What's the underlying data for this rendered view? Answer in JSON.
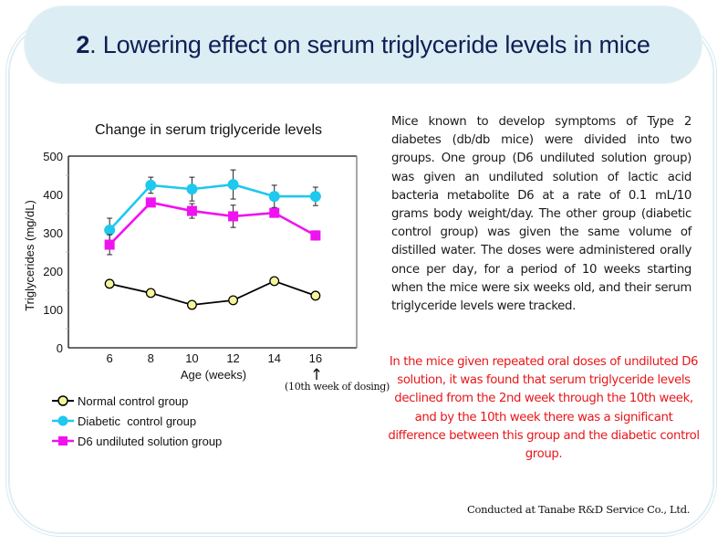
{
  "slide": {
    "title_number": "2",
    "title_text": ". Lowering effect on serum triglyceride levels in mice",
    "body_paragraph": "Mice known to develop symptoms of Type 2 diabetes (db/db mice) were divided into two groups. One group (D6 undiluted solution group) was given an undiluted solution of lactic acid bacteria metabolite D6 at a rate of 0.1 mL/10 grams body weight/day. The other group (diabetic control group) was given the same volume of distilled water. The doses were administered orally once per day, for a period of 10 weeks starting when the mice were six weeks old, and their serum triglyceride levels were tracked.",
    "conclusion": "In the mice given repeated oral doses of undiluted D6 solution, it was found that serum triglyceride levels declined from the 2nd week through the 10th week, and by the 10th week there was a significant difference between this group and the diabetic control group.",
    "credit": "Conducted at Tanabe R&D Service Co., Ltd.",
    "accent_color": "#0f1f55",
    "conclusion_color": "#e8171b",
    "frame_color": "#dcedf3"
  },
  "chart_data": {
    "type": "line",
    "title": "Change in serum triglyceride levels",
    "xlabel": "Age (weeks)",
    "ylabel": "Triglycerides (mg/dL)",
    "x": [
      6,
      8,
      10,
      12,
      14,
      16
    ],
    "xticks": [
      "6",
      "8",
      "10",
      "12",
      "14",
      "16"
    ],
    "yticks": [
      "0",
      "100",
      "200",
      "300",
      "400",
      "500"
    ],
    "xlim": [
      4,
      18
    ],
    "ylim": [
      0,
      500
    ],
    "grid": false,
    "annotation": {
      "text": "(10th week of dosing)",
      "arrow": "↑",
      "at_x": 16
    },
    "legend_position": "bottom-left",
    "series": [
      {
        "name": "Normal control group",
        "color": "#000000",
        "marker": "circle",
        "marker_fill": "#f7f59a",
        "values": [
          167,
          143,
          112,
          124,
          174,
          136
        ],
        "errors": [
          0,
          0,
          0,
          0,
          0,
          0
        ]
      },
      {
        "name": "Diabetic  control group",
        "color": "#1ec8ee",
        "marker": "circle",
        "marker_fill": "#1ec8ee",
        "values": [
          307,
          424,
          414,
          426,
          395,
          395
        ],
        "errors": [
          31,
          21,
          31,
          38,
          29,
          24
        ]
      },
      {
        "name": "D6 undiluted solution group",
        "color": "#f012f0",
        "marker": "square",
        "marker_fill": "#f012f0",
        "values": [
          269,
          379,
          357,
          343,
          352,
          293
        ],
        "errors": [
          26,
          0,
          19,
          29,
          8,
          12
        ]
      }
    ]
  }
}
